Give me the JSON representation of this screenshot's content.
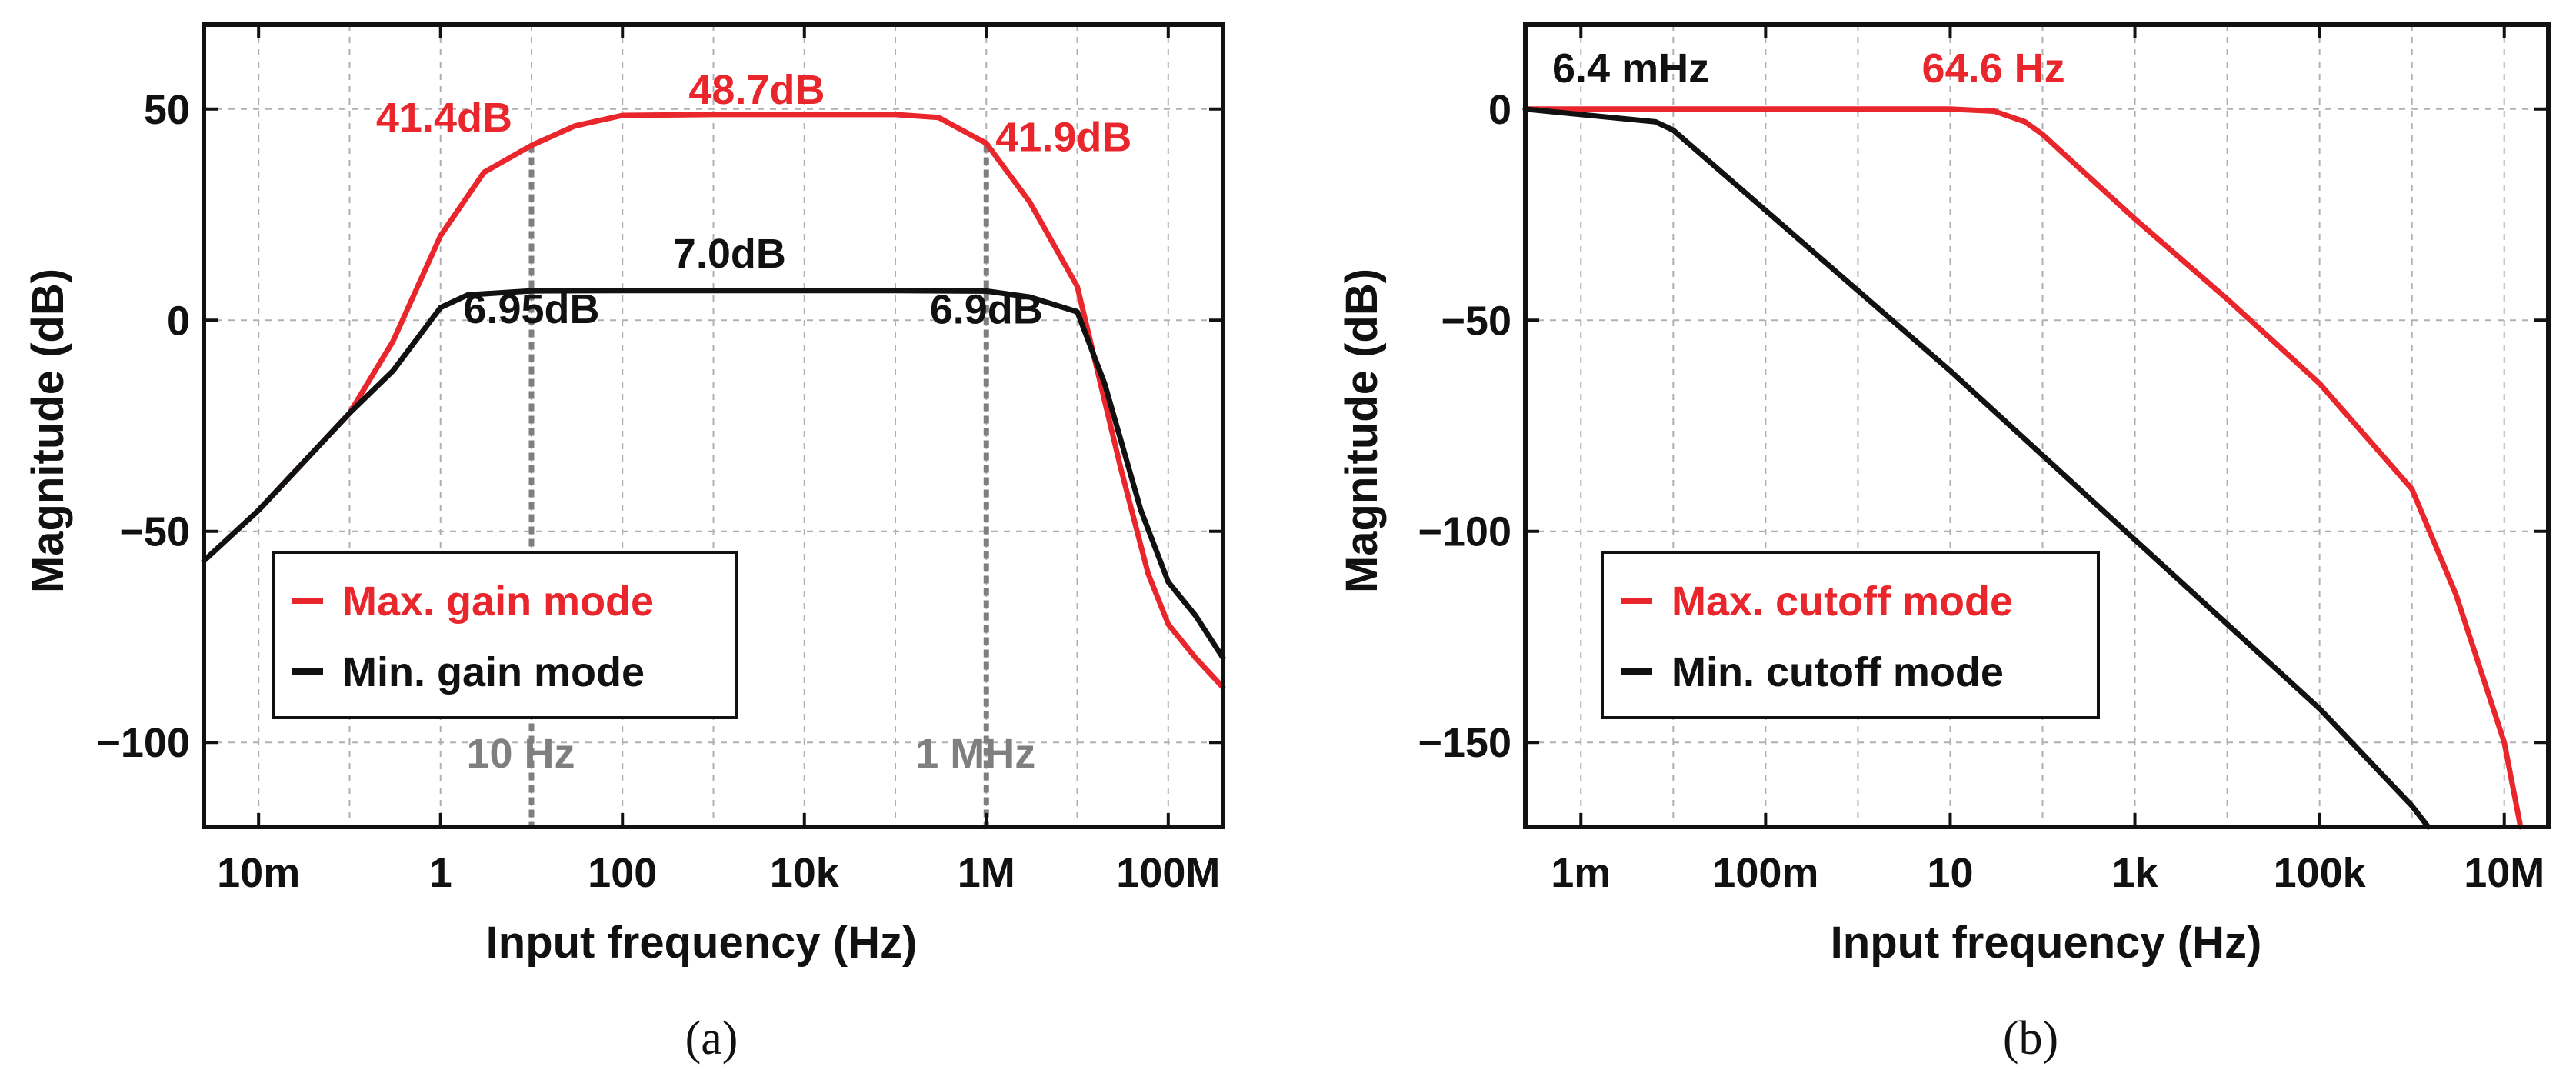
{
  "colors": {
    "red": "#e8262b",
    "black": "#111111",
    "marker_gray": "#7f7f7f",
    "grid_gray": "#b0b0b0"
  },
  "chart_data": [
    {
      "type": "line",
      "panel": "a",
      "caption": "(a)",
      "xlabel": "Input frequency (Hz)",
      "ylabel": "Magnitude (dB)",
      "xscale": "log",
      "xlim": [
        0.0025,
        400000000
      ],
      "ylim": [
        -120,
        70
      ],
      "xticks": [
        {
          "value": 0.01,
          "label": "10m"
        },
        {
          "value": 1,
          "label": "1"
        },
        {
          "value": 100,
          "label": "100"
        },
        {
          "value": 10000,
          "label": "10k"
        },
        {
          "value": 1000000,
          "label": "1M"
        },
        {
          "value": 100000000,
          "label": "100M"
        }
      ],
      "yticks": [
        {
          "value": 50,
          "label": "50"
        },
        {
          "value": 0,
          "label": "0"
        },
        {
          "value": -50,
          "label": "−50"
        },
        {
          "value": -100,
          "label": "−100"
        }
      ],
      "grid": true,
      "legend_position": "bottom-left",
      "series": [
        {
          "name": "Max. gain mode",
          "color": "#e8262b",
          "points": [
            [
              0.01,
              -45
            ],
            [
              0.1,
              -22
            ],
            [
              0.3,
              -5
            ],
            [
              1,
              20
            ],
            [
              3,
              35
            ],
            [
              10,
              41.4
            ],
            [
              30,
              46
            ],
            [
              100,
              48.5
            ],
            [
              1000,
              48.7
            ],
            [
              10000,
              48.7
            ],
            [
              100000,
              48.7
            ],
            [
              300000,
              48
            ],
            [
              1000000,
              41.9
            ],
            [
              3000000,
              28
            ],
            [
              10000000,
              8
            ],
            [
              30000000,
              -35
            ],
            [
              60000000,
              -60
            ],
            [
              100000000,
              -72
            ],
            [
              200000000,
              -80
            ],
            [
              400000000,
              -87
            ]
          ]
        },
        {
          "name": "Min. gain mode",
          "color": "#111111",
          "points": [
            [
              0.0025,
              -57
            ],
            [
              0.01,
              -45
            ],
            [
              0.1,
              -22
            ],
            [
              0.3,
              -12
            ],
            [
              1,
              3
            ],
            [
              2,
              6
            ],
            [
              10,
              6.95
            ],
            [
              100,
              7
            ],
            [
              10000,
              7
            ],
            [
              100000,
              7
            ],
            [
              1000000,
              6.9
            ],
            [
              3000000,
              5.5
            ],
            [
              10000000,
              2
            ],
            [
              20000000,
              -15
            ],
            [
              50000000,
              -45
            ],
            [
              100000000,
              -62
            ],
            [
              200000000,
              -70
            ],
            [
              400000000,
              -80
            ]
          ]
        }
      ],
      "vlines": [
        {
          "x": 10,
          "label": "10 Hz"
        },
        {
          "x": 1000000,
          "label": "1 MHz"
        }
      ],
      "annotations": [
        {
          "text": "41.4dB",
          "x": 0.5,
          "y": 41.4,
          "color": "#e8262b"
        },
        {
          "text": "48.7dB",
          "x": 3500,
          "y": 48.7,
          "color": "#e8262b"
        },
        {
          "text": "41.9dB",
          "x": 25000000,
          "y": 41.9,
          "color": "#e8262b"
        },
        {
          "text": "7.0dB",
          "x": 5000,
          "y": 7,
          "color": "#111111"
        },
        {
          "text": "6.95dB",
          "x": 15,
          "y": 6.95,
          "color": "#111111"
        },
        {
          "text": "6.9dB",
          "x": 1000000,
          "y": 6.9,
          "color": "#111111"
        }
      ]
    },
    {
      "type": "line",
      "panel": "b",
      "caption": "(b)",
      "xlabel": "Input frequency (Hz)",
      "ylabel": "Magnitude (dB)",
      "xscale": "log",
      "xlim": [
        0.00025,
        30000000
      ],
      "ylim": [
        -170,
        20
      ],
      "xticks": [
        {
          "value": 0.001,
          "label": "1m"
        },
        {
          "value": 0.1,
          "label": "100m"
        },
        {
          "value": 10,
          "label": "10"
        },
        {
          "value": 1000,
          "label": "1k"
        },
        {
          "value": 100000,
          "label": "100k"
        },
        {
          "value": 10000000,
          "label": "10M"
        }
      ],
      "yticks": [
        {
          "value": 0,
          "label": "0"
        },
        {
          "value": -50,
          "label": "−50"
        },
        {
          "value": -100,
          "label": "−100"
        },
        {
          "value": -150,
          "label": "−150"
        }
      ],
      "grid": true,
      "legend_position": "bottom-left",
      "series": [
        {
          "name": "Max. cutoff mode",
          "color": "#e8262b",
          "points": [
            [
              0.00025,
              0
            ],
            [
              10,
              0
            ],
            [
              30,
              -0.5
            ],
            [
              64.6,
              -3
            ],
            [
              100,
              -6
            ],
            [
              1000,
              -26
            ],
            [
              10000,
              -45
            ],
            [
              100000,
              -65
            ],
            [
              1000000,
              -90
            ],
            [
              3000000,
              -115
            ],
            [
              10000000,
              -150
            ],
            [
              15000000,
              -170
            ]
          ]
        },
        {
          "name": "Min. cutoff mode",
          "color": "#111111",
          "points": [
            [
              0.00025,
              0
            ],
            [
              0.0064,
              -3
            ],
            [
              0.01,
              -5
            ],
            [
              0.1,
              -24
            ],
            [
              1,
              -43
            ],
            [
              10,
              -62
            ],
            [
              100,
              -82
            ],
            [
              1000,
              -102
            ],
            [
              10000,
              -122
            ],
            [
              100000,
              -142
            ],
            [
              1000000,
              -165
            ],
            [
              1500000,
              -170
            ]
          ]
        }
      ],
      "annotations": [
        {
          "text": "6.4 mHz",
          "x": 0.004,
          "y": 8,
          "color": "#111111"
        },
        {
          "text": "64.6 Hz",
          "x": 64.6,
          "y": 8,
          "color": "#e8262b"
        }
      ]
    }
  ]
}
